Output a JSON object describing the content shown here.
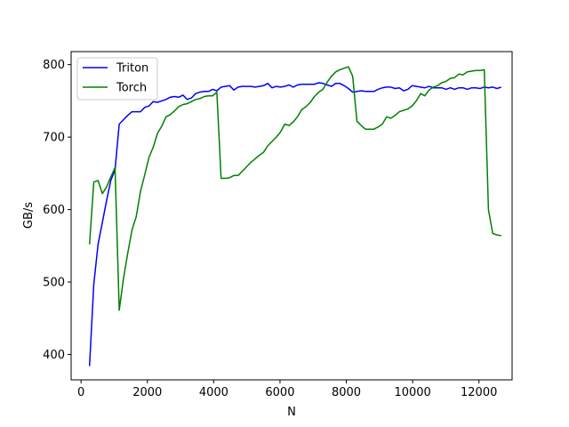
{
  "chart_data": {
    "type": "line",
    "title": "",
    "xlabel": "N",
    "ylabel": "GB/s",
    "xlim": [
      -300,
      13000
    ],
    "ylim": [
      365,
      818
    ],
    "xticks": [
      0,
      2000,
      4000,
      6000,
      8000,
      10000,
      12000
    ],
    "xtick_labels": [
      "0",
      "2000",
      "4000",
      "6000",
      "8000",
      "10000",
      "12000"
    ],
    "yticks": [
      400,
      500,
      600,
      700,
      800
    ],
    "ytick_labels": [
      "400",
      "500",
      "600",
      "700",
      "800"
    ],
    "grid": false,
    "legend": "top-left",
    "series": [
      {
        "name": "Triton",
        "color": "#0000ff",
        "points": [
          [
            256,
            384
          ],
          [
            384,
            497
          ],
          [
            512,
            552
          ],
          [
            640,
            582
          ],
          [
            768,
            612
          ],
          [
            896,
            640
          ],
          [
            1024,
            655
          ],
          [
            1152,
            718
          ],
          [
            1280,
            724
          ],
          [
            1408,
            730
          ],
          [
            1536,
            735
          ],
          [
            1664,
            735
          ],
          [
            1792,
            735
          ],
          [
            1920,
            741
          ],
          [
            2048,
            743
          ],
          [
            2176,
            749
          ],
          [
            2304,
            748
          ],
          [
            2432,
            750
          ],
          [
            2560,
            752
          ],
          [
            2688,
            755
          ],
          [
            2816,
            756
          ],
          [
            2944,
            755
          ],
          [
            3072,
            758
          ],
          [
            3200,
            752
          ],
          [
            3328,
            754
          ],
          [
            3456,
            760
          ],
          [
            3584,
            762
          ],
          [
            3712,
            763
          ],
          [
            3840,
            763
          ],
          [
            3968,
            766
          ],
          [
            4096,
            764
          ],
          [
            4224,
            769
          ],
          [
            4352,
            770
          ],
          [
            4480,
            771
          ],
          [
            4608,
            765
          ],
          [
            4736,
            769
          ],
          [
            4864,
            770
          ],
          [
            4992,
            770
          ],
          [
            5120,
            770
          ],
          [
            5248,
            769
          ],
          [
            5376,
            770
          ],
          [
            5504,
            771
          ],
          [
            5632,
            774
          ],
          [
            5760,
            768
          ],
          [
            5888,
            770
          ],
          [
            6016,
            769
          ],
          [
            6144,
            770
          ],
          [
            6272,
            772
          ],
          [
            6400,
            769
          ],
          [
            6528,
            772
          ],
          [
            6656,
            773
          ],
          [
            6784,
            773
          ],
          [
            6912,
            773
          ],
          [
            7040,
            773
          ],
          [
            7168,
            775
          ],
          [
            7296,
            774
          ],
          [
            7424,
            772
          ],
          [
            7552,
            770
          ],
          [
            7680,
            774
          ],
          [
            7808,
            774
          ],
          [
            7936,
            771
          ],
          [
            8064,
            767
          ],
          [
            8192,
            762
          ],
          [
            8320,
            763
          ],
          [
            8448,
            764
          ],
          [
            8576,
            763
          ],
          [
            8704,
            763
          ],
          [
            8832,
            763
          ],
          [
            8960,
            766
          ],
          [
            9088,
            768
          ],
          [
            9216,
            769
          ],
          [
            9344,
            769
          ],
          [
            9472,
            767
          ],
          [
            9600,
            768
          ],
          [
            9728,
            764
          ],
          [
            9856,
            766
          ],
          [
            9984,
            771
          ],
          [
            10112,
            770
          ],
          [
            10240,
            769
          ],
          [
            10368,
            768
          ],
          [
            10496,
            770
          ],
          [
            10624,
            768
          ],
          [
            10752,
            768
          ],
          [
            10880,
            768
          ],
          [
            11008,
            766
          ],
          [
            11136,
            768
          ],
          [
            11264,
            766
          ],
          [
            11392,
            768
          ],
          [
            11520,
            768
          ],
          [
            11648,
            766
          ],
          [
            11776,
            768
          ],
          [
            11904,
            768
          ],
          [
            12032,
            767
          ],
          [
            12160,
            769
          ],
          [
            12288,
            768
          ],
          [
            12416,
            769
          ],
          [
            12544,
            767
          ],
          [
            12672,
            769
          ]
        ]
      },
      {
        "name": "Torch",
        "color": "#008000",
        "points": [
          [
            256,
            552
          ],
          [
            384,
            638
          ],
          [
            512,
            640
          ],
          [
            640,
            622
          ],
          [
            768,
            631
          ],
          [
            896,
            645
          ],
          [
            1024,
            658
          ],
          [
            1152,
            461
          ],
          [
            1280,
            505
          ],
          [
            1408,
            540
          ],
          [
            1536,
            572
          ],
          [
            1664,
            590
          ],
          [
            1792,
            625
          ],
          [
            1920,
            648
          ],
          [
            2048,
            672
          ],
          [
            2176,
            686
          ],
          [
            2304,
            705
          ],
          [
            2432,
            715
          ],
          [
            2560,
            728
          ],
          [
            2688,
            731
          ],
          [
            2816,
            736
          ],
          [
            2944,
            742
          ],
          [
            3072,
            745
          ],
          [
            3200,
            746
          ],
          [
            3328,
            749
          ],
          [
            3456,
            752
          ],
          [
            3584,
            753
          ],
          [
            3712,
            756
          ],
          [
            3840,
            757
          ],
          [
            3968,
            757
          ],
          [
            4096,
            762
          ],
          [
            4224,
            643
          ],
          [
            4352,
            643
          ],
          [
            4480,
            644
          ],
          [
            4608,
            647
          ],
          [
            4736,
            647
          ],
          [
            4864,
            653
          ],
          [
            4992,
            659
          ],
          [
            5120,
            665
          ],
          [
            5248,
            670
          ],
          [
            5376,
            675
          ],
          [
            5504,
            679
          ],
          [
            5632,
            688
          ],
          [
            5760,
            694
          ],
          [
            5888,
            700
          ],
          [
            6016,
            707
          ],
          [
            6144,
            718
          ],
          [
            6272,
            716
          ],
          [
            6400,
            721
          ],
          [
            6528,
            728
          ],
          [
            6656,
            738
          ],
          [
            6784,
            742
          ],
          [
            6912,
            748
          ],
          [
            7040,
            756
          ],
          [
            7168,
            762
          ],
          [
            7296,
            766
          ],
          [
            7424,
            776
          ],
          [
            7552,
            784
          ],
          [
            7680,
            790
          ],
          [
            7808,
            793
          ],
          [
            7936,
            795
          ],
          [
            8064,
            797
          ],
          [
            8192,
            784
          ],
          [
            8320,
            722
          ],
          [
            8448,
            716
          ],
          [
            8576,
            711
          ],
          [
            8704,
            711
          ],
          [
            8832,
            711
          ],
          [
            8960,
            714
          ],
          [
            9088,
            718
          ],
          [
            9216,
            728
          ],
          [
            9344,
            726
          ],
          [
            9472,
            730
          ],
          [
            9600,
            735
          ],
          [
            9728,
            737
          ],
          [
            9856,
            739
          ],
          [
            9984,
            743
          ],
          [
            10112,
            750
          ],
          [
            10240,
            760
          ],
          [
            10368,
            757
          ],
          [
            10496,
            765
          ],
          [
            10624,
            769
          ],
          [
            10752,
            771
          ],
          [
            10880,
            775
          ],
          [
            11008,
            777
          ],
          [
            11136,
            781
          ],
          [
            11264,
            782
          ],
          [
            11392,
            787
          ],
          [
            11520,
            786
          ],
          [
            11648,
            790
          ],
          [
            11776,
            791
          ],
          [
            11904,
            792
          ],
          [
            12032,
            792
          ],
          [
            12160,
            793
          ],
          [
            12288,
            600
          ],
          [
            12416,
            567
          ],
          [
            12544,
            565
          ],
          [
            12672,
            564
          ]
        ]
      }
    ]
  }
}
